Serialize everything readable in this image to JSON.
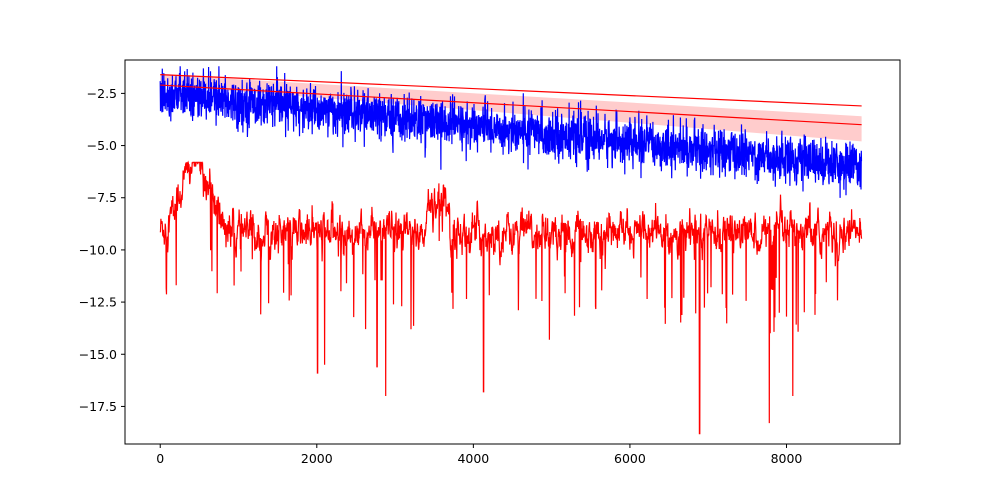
{
  "chart_data": {
    "type": "line",
    "title": "",
    "xlabel": "",
    "ylabel": "",
    "xlim": [
      -450,
      9450
    ],
    "ylim": [
      -19.3,
      -0.9
    ],
    "x_ticks": [
      0,
      2000,
      4000,
      6000,
      8000
    ],
    "x_tick_labels": [
      "0",
      "2000",
      "4000",
      "6000",
      "8000"
    ],
    "y_ticks": [
      -2.5,
      -5.0,
      -7.5,
      -10.0,
      -12.5,
      -15.0,
      -17.5
    ],
    "y_tick_labels": [
      "−2.5",
      "−5.0",
      "−7.5",
      "−10.0",
      "−12.5",
      "−15.0",
      "−17.5"
    ],
    "grid": false,
    "legend": "none",
    "x_range": [
      0,
      8960
    ],
    "series": [
      {
        "kind": "noisy-line",
        "color": "#0000ff",
        "n_points": 8961,
        "trend_start": -2.5,
        "trend_end": -6.0,
        "noise_sd": 0.55,
        "spike_top_approx": -1.2,
        "spike_bottom_approx": -8.0
      },
      {
        "kind": "noisy-line",
        "color": "#ff0000",
        "n_points": 8961,
        "mean_level": -9.2,
        "early_peak": {
          "x": 450,
          "y": -5.8
        },
        "noise_sd": 1.0,
        "notable_minima": [
          {
            "x": 2010,
            "y": -15.9
          },
          {
            "x": 2100,
            "y": -15.5
          },
          {
            "x": 2770,
            "y": -15.6
          },
          {
            "x": 2880,
            "y": -17.0
          },
          {
            "x": 4130,
            "y": -16.8
          },
          {
            "x": 6890,
            "y": -18.8
          },
          {
            "x": 7780,
            "y": -18.3
          },
          {
            "x": 8080,
            "y": -17.0
          }
        ]
      },
      {
        "kind": "straight-line",
        "color": "#ff0000",
        "x": [
          0,
          8960
        ],
        "y": [
          -1.6,
          -3.1
        ]
      },
      {
        "kind": "straight-line",
        "color": "#ff0000",
        "x": [
          0,
          8960
        ],
        "y": [
          -2.1,
          -4.0
        ]
      }
    ],
    "band": {
      "color": "#ffcccc",
      "x": [
        0,
        8960
      ],
      "upper": [
        -1.6,
        -3.6
      ],
      "lower": [
        -2.1,
        -4.8
      ]
    }
  }
}
